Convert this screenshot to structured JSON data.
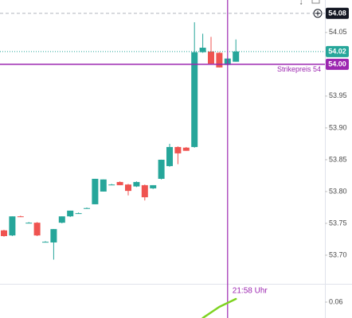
{
  "chart_data": {
    "type": "candlestick",
    "open": [
      53.739,
      53.731,
      53.761,
      53.751,
      53.751,
      53.721,
      53.72,
      53.751,
      53.761,
      53.766,
      53.774,
      53.78,
      53.8,
      53.811,
      53.815,
      53.811,
      53.808,
      53.81,
      53.805,
      53.82,
      53.84,
      53.87,
      53.869,
      53.87,
      54.019,
      54.02,
      54.018,
      53.999,
      54.004
    ],
    "high": [
      53.74,
      53.761,
      53.762,
      53.752,
      53.752,
      53.722,
      53.741,
      53.761,
      53.77,
      53.767,
      53.775,
      53.82,
      53.819,
      53.812,
      53.816,
      53.812,
      53.816,
      53.811,
      53.81,
      53.85,
      53.875,
      53.871,
      53.87,
      54.066,
      54.048,
      54.043,
      54.019,
      54.009,
      54.039
    ],
    "low": [
      53.729,
      53.73,
      53.76,
      53.75,
      53.73,
      53.72,
      53.693,
      53.75,
      53.76,
      53.765,
      53.773,
      53.78,
      53.8,
      53.81,
      53.81,
      53.794,
      53.807,
      53.786,
      53.804,
      53.819,
      53.839,
      53.843,
      53.864,
      53.869,
      54.018,
      54.0,
      53.995,
      53.998,
      54.004
    ],
    "close": [
      53.73,
      53.761,
      53.76,
      53.751,
      53.731,
      53.721,
      53.741,
      53.761,
      53.77,
      53.766,
      53.774,
      53.82,
      53.819,
      53.811,
      53.81,
      53.801,
      53.815,
      53.791,
      53.81,
      53.85,
      53.87,
      53.86,
      53.864,
      54.019,
      54.026,
      54.001,
      53.995,
      54.009,
      54.02
    ],
    "up_color": "#26a69a",
    "down_color": "#ef5350",
    "ylim": [
      53.655,
      54.101
    ],
    "yticks": [
      54.05,
      53.95,
      {
        "value": 53.9,
        "label": "53.90"
      },
      53.85,
      {
        "value": 53.8,
        "label": "53.80"
      },
      53.75,
      {
        "value": 53.7,
        "label": "53.70"
      }
    ],
    "price_tags": [
      {
        "value": 54.08,
        "label": "54.08",
        "color": "#131722"
      },
      {
        "value": 54.02,
        "label": "54.02",
        "color": "#26a69a"
      }
    ],
    "strike": {
      "value": 54,
      "label": "54.00",
      "text": "Strikepreis 54",
      "color": "#9c27b0"
    },
    "crosshair_label": "21:58 Uhr",
    "indicator": {
      "color": "#7ed321",
      "values": [
        null,
        null,
        null,
        null,
        null,
        null,
        null,
        null,
        null,
        null,
        null,
        null,
        null,
        null,
        null,
        null,
        null,
        null,
        null,
        null,
        null,
        null,
        null,
        null,
        0.05,
        0.0535,
        0.057,
        0.0595,
        0.062
      ],
      "ylim": [
        0.05,
        0.071
      ],
      "yticks": [
        {
          "value": 0.06,
          "label": "0.06"
        }
      ]
    }
  }
}
